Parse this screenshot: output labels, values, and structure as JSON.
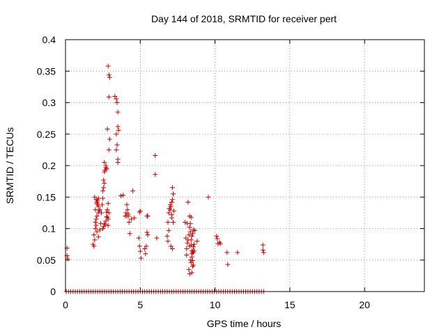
{
  "chart_data": {
    "type": "scatter",
    "title": "Day 144 of 2018, SRMTID for receiver pert",
    "xlabel": "GPS time / hours",
    "ylabel": "SRMTID / TECUs",
    "xlim": [
      0,
      24
    ],
    "ylim": [
      0,
      0.4
    ],
    "xticks": [
      0,
      5,
      10,
      15,
      20
    ],
    "xtick_labels": [
      "0",
      "5",
      "10",
      "15",
      "20"
    ],
    "yticks": [
      0,
      0.05,
      0.1,
      0.15,
      0.2,
      0.25,
      0.3,
      0.35,
      0.4
    ],
    "ytick_labels": [
      "0",
      "0.05",
      "0.1",
      "0.15",
      "0.2",
      "0.25",
      "0.3",
      "0.35",
      "0.4"
    ],
    "grid": true,
    "marker": "+",
    "color": "#cc0000",
    "zero_band": {
      "x_start": 0.05,
      "x_end": 13.25,
      "x_step": 0.15,
      "y": 0
    },
    "series": [
      {
        "name": "pert",
        "x": [
          0.1,
          0.1,
          0.15,
          1.85,
          1.9,
          1.95,
          1.9,
          2.0,
          2.0,
          2.05,
          2.1,
          2.0,
          2.1,
          2.15,
          2.2,
          2.2,
          2.25,
          2.3,
          2.2,
          2.15,
          2.1,
          2.05,
          1.95,
          2.05,
          2.1,
          2.2,
          2.3,
          2.35,
          2.4,
          2.45,
          2.5,
          2.5,
          2.55,
          2.6,
          2.55,
          2.6,
          2.65,
          2.7,
          2.6,
          2.7,
          2.75,
          2.8,
          2.85,
          2.5,
          2.6,
          2.7,
          2.75,
          2.8,
          2.85,
          2.9,
          2.85,
          2.9,
          2.95,
          2.8,
          2.55,
          2.65,
          2.75,
          2.85,
          2.9,
          2.95,
          2.9,
          3.3,
          3.4,
          3.45,
          3.5,
          3.5,
          3.55,
          3.4,
          3.45,
          3.4,
          3.5,
          3.5,
          3.7,
          3.85,
          4.0,
          4.05,
          4.1,
          4.15,
          4.2,
          4.25,
          4.1,
          4.2,
          4.3,
          4.4,
          4.5,
          4.6,
          4.9,
          4.95,
          5.0,
          4.95,
          5.0,
          5.05,
          5.3,
          5.35,
          5.4,
          5.45,
          5.5,
          5.5,
          5.45,
          6.0,
          6.0,
          6.1,
          6.85,
          6.8,
          6.9,
          6.85,
          7.0,
          6.95,
          7.05,
          7.1,
          7.15,
          7.2,
          7.15,
          7.25,
          7.1,
          6.9,
          7.0,
          7.1,
          7.05,
          7.15,
          7.2,
          8.0,
          8.05,
          8.1,
          8.15,
          8.2,
          8.25,
          8.3,
          8.35,
          8.4,
          8.45,
          8.5,
          8.55,
          8.6,
          8.2,
          8.3,
          8.35,
          8.4,
          8.45,
          8.5,
          8.55,
          8.3,
          8.4,
          8.45,
          8.5,
          8.35,
          8.4,
          8.45,
          8.25,
          8.3,
          8.45,
          8.5,
          8.55,
          8.6,
          8.1,
          8.15,
          8.55,
          8.65,
          8.8,
          9.55,
          10.1,
          10.15,
          10.2,
          10.3,
          10.35,
          10.8,
          10.85,
          11.5,
          13.2,
          13.2,
          13.25
        ],
        "y": [
          0.069,
          0.057,
          0.052,
          0.075,
          0.072,
          0.082,
          0.09,
          0.1,
          0.11,
          0.115,
          0.12,
          0.13,
          0.14,
          0.145,
          0.148,
          0.125,
          0.128,
          0.13,
          0.135,
          0.138,
          0.142,
          0.146,
          0.15,
          0.105,
          0.095,
          0.087,
          0.098,
          0.108,
          0.125,
          0.138,
          0.148,
          0.16,
          0.165,
          0.172,
          0.177,
          0.19,
          0.193,
          0.2,
          0.205,
          0.197,
          0.195,
          0.118,
          0.105,
          0.1,
          0.108,
          0.112,
          0.126,
          0.13,
          0.14,
          0.125,
          0.115,
          0.225,
          0.242,
          0.258,
          0.103,
          0.106,
          0.119,
          0.358,
          0.344,
          0.34,
          0.309,
          0.31,
          0.306,
          0.3,
          0.285,
          0.262,
          0.256,
          0.25,
          0.233,
          0.225,
          0.21,
          0.205,
          0.152,
          0.153,
          0.12,
          0.125,
          0.138,
          0.13,
          0.12,
          0.11,
          0.12,
          0.123,
          0.092,
          0.115,
          0.16,
          0.117,
          0.085,
          0.126,
          0.128,
          0.072,
          0.064,
          0.053,
          0.068,
          0.06,
          0.072,
          0.094,
          0.09,
          0.12,
          0.12,
          0.216,
          0.186,
          0.085,
          0.08,
          0.088,
          0.097,
          0.11,
          0.138,
          0.132,
          0.135,
          0.142,
          0.146,
          0.155,
          0.165,
          0.128,
          0.117,
          0.125,
          0.13,
          0.122,
          0.072,
          0.068,
          0.11,
          0.11,
          0.085,
          0.068,
          0.077,
          0.082,
          0.09,
          0.102,
          0.108,
          0.118,
          0.06,
          0.063,
          0.071,
          0.075,
          0.142,
          0.12,
          0.095,
          0.082,
          0.065,
          0.049,
          0.042,
          0.072,
          0.074,
          0.088,
          0.092,
          0.05,
          0.046,
          0.055,
          0.035,
          0.028,
          0.03,
          0.04,
          0.062,
          0.065,
          0.058,
          0.108,
          0.098,
          0.097,
          0.08,
          0.15,
          0.088,
          0.084,
          0.076,
          0.078,
          0.076,
          0.062,
          0.043,
          0.062,
          0.074,
          0.066,
          0.062
        ]
      }
    ]
  }
}
